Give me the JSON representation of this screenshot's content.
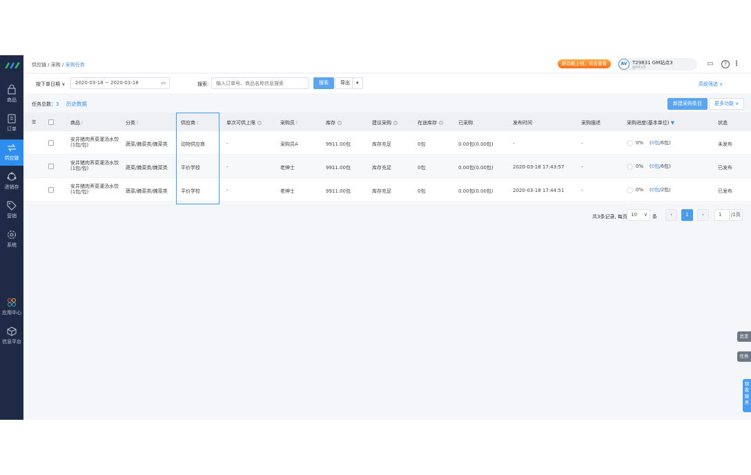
{
  "sidebar": {
    "items": [
      {
        "label": "商品",
        "icon": "bag-icon"
      },
      {
        "label": "订单",
        "icon": "order-icon"
      },
      {
        "label": "供应链",
        "icon": "exchange-icon",
        "active": true
      },
      {
        "label": "进销存",
        "icon": "inventory-icon"
      },
      {
        "label": "营销",
        "icon": "tag-icon"
      },
      {
        "label": "系统",
        "icon": "gear-icon"
      },
      {
        "label": "应用中心",
        "icon": "apps-icon"
      },
      {
        "label": "信息平台",
        "icon": "cube-icon"
      }
    ]
  },
  "header": {
    "breadcrumb": [
      "供应链",
      "采购",
      "采购任务"
    ],
    "promo": "新功能上线，点击查看",
    "user": {
      "avatar": "AV",
      "name": "T29831 GM站点3",
      "sub": "gmtv3"
    }
  },
  "filter": {
    "date_type": "按下单日期",
    "date_range": "2020-03-18 ~ 2020-03-18",
    "search_label": "搜索:",
    "search_placeholder": "输入订单号、商品名称信息搜索",
    "search_button": "搜索",
    "export_button": "导出",
    "advanced": "高级筛选"
  },
  "summary": {
    "count_label": "任务总数：",
    "count": "3",
    "history": "历史数据",
    "new_button": "新建采购条目",
    "more_button": "更多功能"
  },
  "table": {
    "headers": [
      "商品",
      "分类",
      "供应商",
      "单次可供上限",
      "采购员",
      "库存",
      "建议采购",
      "在途库存",
      "已采购",
      "发布时间",
      "采购描述",
      "采购进度(基本单位)",
      "状态"
    ],
    "rows": [
      {
        "product": "安井猪肉荠菜灌汤水饺",
        "unit": "(1包/包)",
        "category": "蔬菜/腌菜类/腌菜类",
        "supplier": "动物供应商",
        "limit": "-",
        "buyer": "采购员A",
        "stock": "9911.00包",
        "suggest": "库存充足",
        "transit": "0包",
        "bought": "0.00包(0.00包)",
        "time": "-",
        "desc": "-",
        "pct": "0%",
        "done": "0包",
        "total": "/6包)",
        "status": "未发布"
      },
      {
        "product": "安井猪肉荠菜灌汤水饺",
        "unit": "(1包/包)",
        "category": "蔬菜/腌菜类/腌菜类",
        "supplier": "平价学校",
        "limit": "-",
        "buyer": "老绅士",
        "stock": "9911.00包",
        "suggest": "库存充足",
        "transit": "0包",
        "bought": "0.00包(0.00包)",
        "time": "2020-03-18 17:43:57",
        "desc": "-",
        "pct": "0%",
        "done": "0包",
        "total": "/6包)",
        "status": "已发布"
      },
      {
        "product": "安井猪肉荠菜灌汤水饺",
        "unit": "(1包/包)",
        "category": "蔬菜/腌菜类/腌菜类",
        "supplier": "平价学校",
        "limit": "-",
        "buyer": "老绅士",
        "stock": "9911.00包",
        "suggest": "库存充足",
        "transit": "0包",
        "bought": "0.00包(0.00包)",
        "time": "2020-03-18 17:44:51",
        "desc": "-",
        "pct": "0%",
        "done": "0包",
        "total": "/2包)",
        "status": "已发布"
      }
    ]
  },
  "pagination": {
    "total_text": "共3条记录, 每页",
    "page_size": "10",
    "unit": "条",
    "current": "1",
    "jump": "1",
    "pages": "/1页"
  },
  "floating": {
    "overview": "总览",
    "task": "任务",
    "service": "观看服务"
  },
  "colors": {
    "accent": "#3d8ee8",
    "sidebar": "#1e2a46",
    "promo": "#f5711e"
  }
}
